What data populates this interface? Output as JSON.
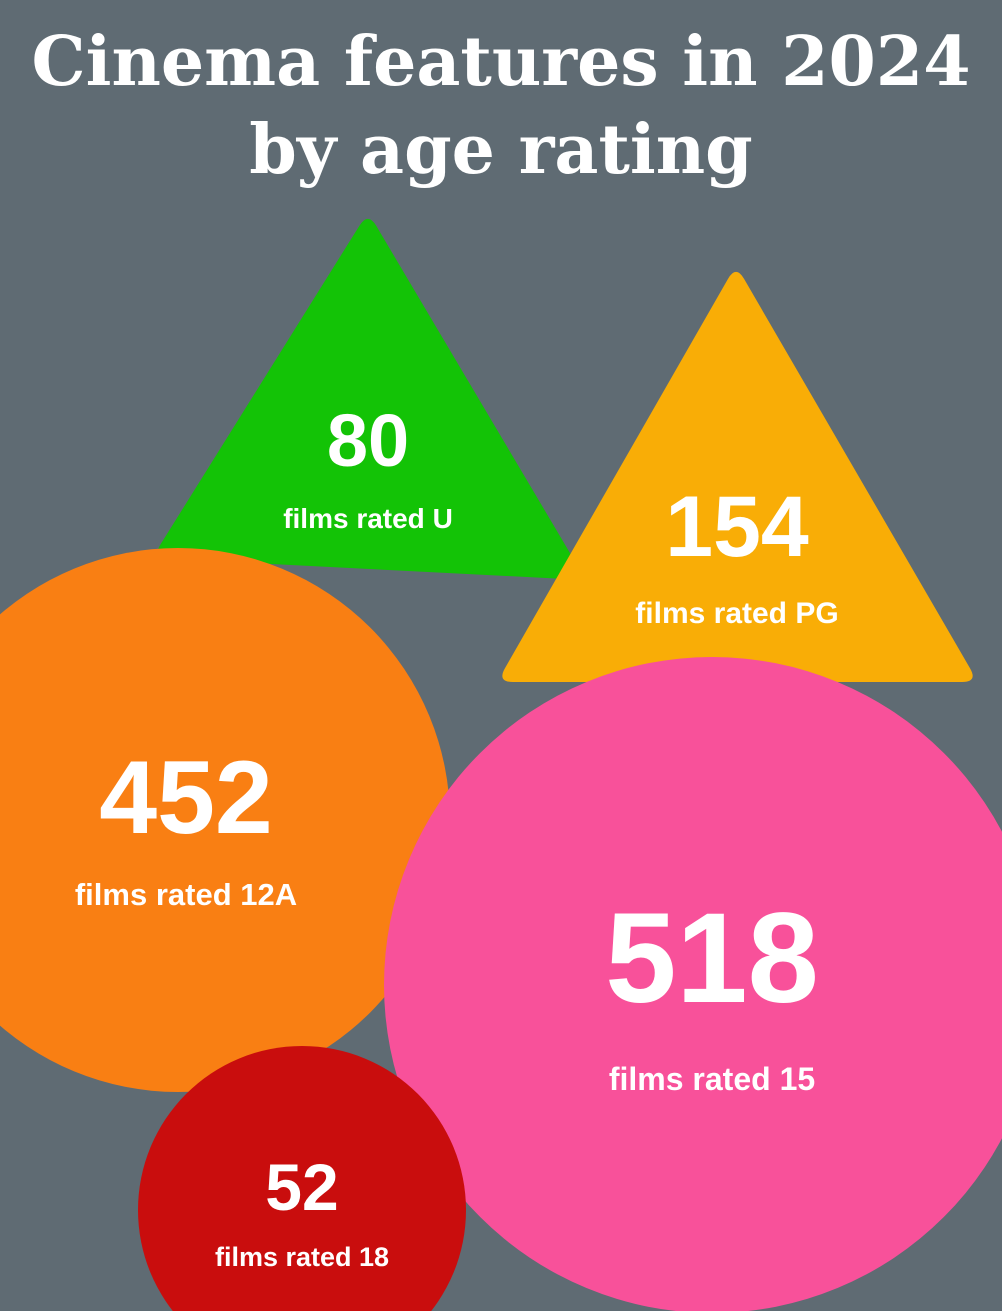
{
  "chart_data": {
    "type": "bubble",
    "title": "Cinema features in 2024 by age rating",
    "categories": [
      "U",
      "PG",
      "12A",
      "15",
      "18"
    ],
    "values": [
      80,
      154,
      452,
      518,
      52
    ],
    "labels": [
      "films rated U",
      "films rated PG",
      "films rated 12A",
      "films rated 15",
      "films rated 18"
    ],
    "shapes": [
      "triangle",
      "triangle",
      "circle",
      "circle",
      "circle"
    ],
    "colors": [
      "#13c306",
      "#f9ad06",
      "#f97f13",
      "#f8519a",
      "#c90d0d"
    ]
  },
  "colors": {
    "background": "#5f6b73",
    "text": "#ffffff"
  }
}
